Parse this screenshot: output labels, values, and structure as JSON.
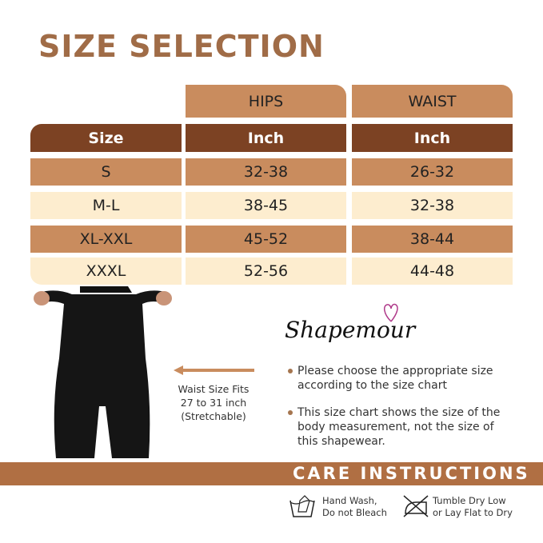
{
  "title": "SIZE SELECTION",
  "table": {
    "group_headers": [
      "HIPS",
      "WAIST"
    ],
    "unit_header": {
      "size": "Size",
      "hips": "Inch",
      "waist": "Inch"
    },
    "rows": [
      {
        "size": "S",
        "hips": "32-38",
        "waist": "26-32"
      },
      {
        "size": "M-L",
        "hips": "38-45",
        "waist": "32-38"
      },
      {
        "size": "XL-XXL",
        "hips": "45-52",
        "waist": "38-44"
      },
      {
        "size": "XXXL",
        "hips": "52-56",
        "waist": "44-48"
      }
    ]
  },
  "brand": "Shapemour",
  "waist_note": [
    "Waist Size Fits",
    "27 to 31 inch",
    "(Stretchable)"
  ],
  "bullets": [
    "Please choose the appropriate size according to the size chart",
    "This size chart shows the size of the body measurement, not the size of this shapewear."
  ],
  "care": {
    "title": "CARE INSTRUCTIONS",
    "items": [
      {
        "icon": "hand-wash-icon",
        "lines": [
          "Hand  Wash,",
          "Do not Bleach"
        ]
      },
      {
        "icon": "no-tumble-dry-icon",
        "lines": [
          "Tumble Dry Low",
          "or Lay Flat to Dry"
        ]
      }
    ]
  },
  "colors": {
    "accent": "#b06f43",
    "dark": "#7c4223",
    "tan": "#c98c5e",
    "cream": "#fdedcf"
  }
}
